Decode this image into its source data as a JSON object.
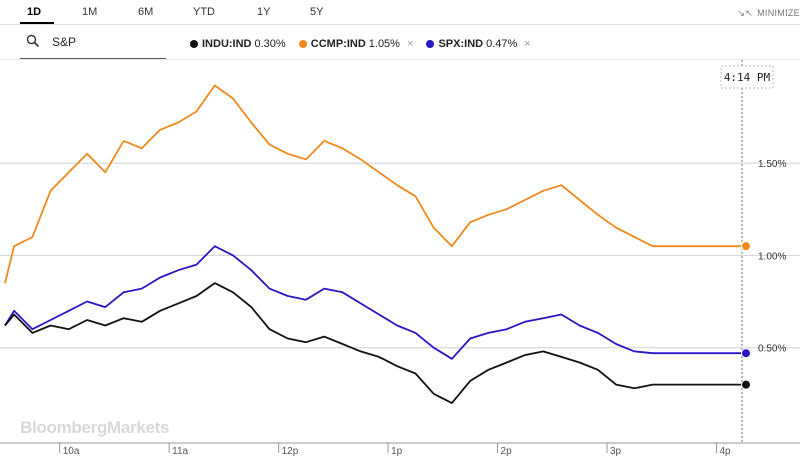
{
  "tabs": [
    {
      "label": "1D",
      "active": true
    },
    {
      "label": "1M",
      "active": false
    },
    {
      "label": "6M",
      "active": false
    },
    {
      "label": "YTD",
      "active": false
    },
    {
      "label": "1Y",
      "active": false
    },
    {
      "label": "5Y",
      "active": false
    }
  ],
  "minimize_label": "MINIMIZE",
  "search": {
    "value": "S&P",
    "icon": "search-icon"
  },
  "legend": [
    {
      "name": "INDU:IND",
      "change": "0.30%",
      "color": "#111111",
      "removable": false
    },
    {
      "name": "CCMP:IND",
      "change": "1.05%",
      "color": "#f0891e",
      "removable": true
    },
    {
      "name": "SPX:IND",
      "change": "0.47%",
      "color": "#2a16c4",
      "removable": true
    }
  ],
  "remove_symbol": "×",
  "time_label": "4:14 PM",
  "watermark": "BloombergMarkets",
  "chart_data": {
    "type": "line",
    "x_range": [
      "9:30",
      "16:14"
    ],
    "x_ticks": [
      "10a",
      "11a",
      "12p",
      "1p",
      "2p",
      "3p",
      "4p"
    ],
    "y_ticks": [
      "0.50%",
      "1.00%",
      "1.50%"
    ],
    "y_tick_values": [
      0.5,
      1.0,
      1.5
    ],
    "ylim": [
      0.0,
      1.95
    ],
    "grid": true,
    "legend_position": "top",
    "series": [
      {
        "name": "CCMP:IND",
        "color": "#f0891e",
        "x_minutes": [
          0,
          5,
          15,
          25,
          35,
          45,
          55,
          65,
          75,
          85,
          95,
          105,
          115,
          125,
          135,
          145,
          155,
          165,
          175,
          185,
          195,
          205,
          215,
          225,
          235,
          245,
          255,
          265,
          275,
          285,
          295,
          305,
          315,
          325,
          335,
          345,
          355,
          365,
          375,
          385,
          395,
          404
        ],
        "values": [
          0.85,
          1.05,
          1.1,
          1.35,
          1.45,
          1.55,
          1.45,
          1.62,
          1.58,
          1.68,
          1.72,
          1.78,
          1.92,
          1.85,
          1.72,
          1.6,
          1.55,
          1.52,
          1.62,
          1.58,
          1.52,
          1.45,
          1.38,
          1.32,
          1.15,
          1.05,
          1.18,
          1.22,
          1.25,
          1.3,
          1.35,
          1.38,
          1.3,
          1.22,
          1.15,
          1.1,
          1.05,
          1.05,
          1.05,
          1.05,
          1.05,
          1.05
        ]
      },
      {
        "name": "SPX:IND",
        "color": "#2a16c4",
        "x_minutes": [
          0,
          5,
          15,
          25,
          35,
          45,
          55,
          65,
          75,
          85,
          95,
          105,
          115,
          125,
          135,
          145,
          155,
          165,
          175,
          185,
          195,
          205,
          215,
          225,
          235,
          245,
          255,
          265,
          275,
          285,
          295,
          305,
          315,
          325,
          335,
          345,
          355,
          365,
          375,
          385,
          395,
          404
        ],
        "values": [
          0.62,
          0.7,
          0.6,
          0.65,
          0.7,
          0.75,
          0.72,
          0.8,
          0.82,
          0.88,
          0.92,
          0.95,
          1.05,
          1.0,
          0.92,
          0.82,
          0.78,
          0.76,
          0.82,
          0.8,
          0.74,
          0.68,
          0.62,
          0.58,
          0.5,
          0.44,
          0.55,
          0.58,
          0.6,
          0.64,
          0.66,
          0.68,
          0.62,
          0.58,
          0.52,
          0.48,
          0.47,
          0.47,
          0.47,
          0.47,
          0.47,
          0.47
        ]
      },
      {
        "name": "INDU:IND",
        "color": "#111111",
        "x_minutes": [
          0,
          5,
          15,
          25,
          35,
          45,
          55,
          65,
          75,
          85,
          95,
          105,
          115,
          125,
          135,
          145,
          155,
          165,
          175,
          185,
          195,
          205,
          215,
          225,
          235,
          245,
          255,
          265,
          275,
          285,
          295,
          305,
          315,
          325,
          335,
          345,
          355,
          365,
          375,
          385,
          395,
          404
        ],
        "values": [
          0.62,
          0.68,
          0.58,
          0.62,
          0.6,
          0.65,
          0.62,
          0.66,
          0.64,
          0.7,
          0.74,
          0.78,
          0.85,
          0.8,
          0.72,
          0.6,
          0.55,
          0.53,
          0.56,
          0.52,
          0.48,
          0.45,
          0.4,
          0.36,
          0.25,
          0.2,
          0.32,
          0.38,
          0.42,
          0.46,
          0.48,
          0.45,
          0.42,
          0.38,
          0.3,
          0.28,
          0.3,
          0.3,
          0.3,
          0.3,
          0.3,
          0.3
        ]
      }
    ]
  }
}
